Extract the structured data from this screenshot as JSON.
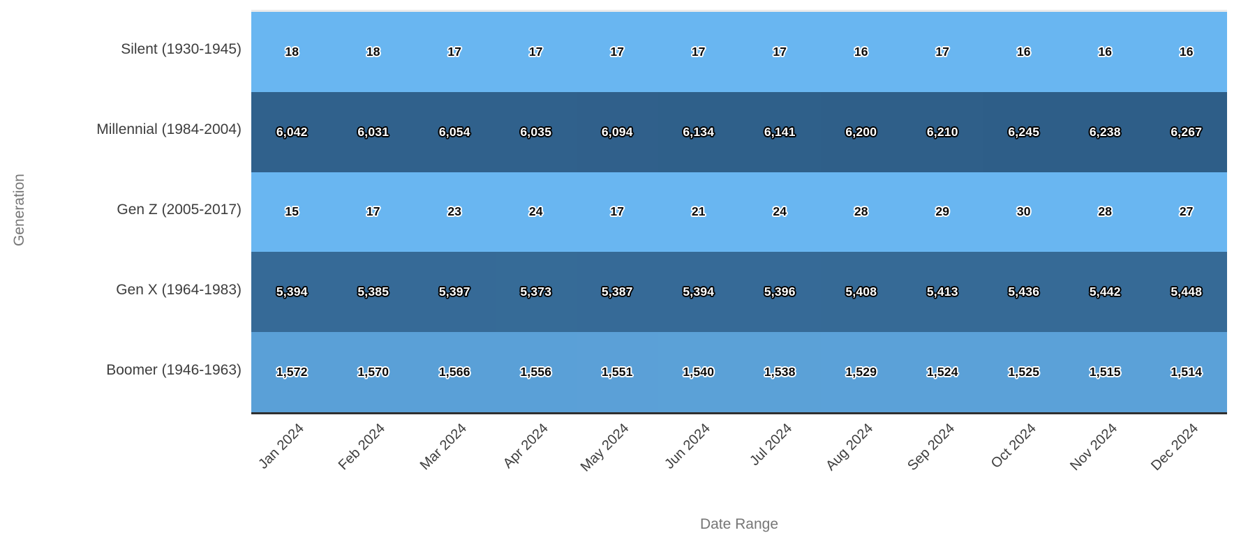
{
  "chart_data": {
    "type": "heatmap",
    "title": "",
    "xlabel": "Date Range",
    "ylabel": "Generation",
    "x": [
      "Jan 2024",
      "Feb 2024",
      "Mar 2024",
      "Apr 2024",
      "May 2024",
      "Jun 2024",
      "Jul 2024",
      "Aug 2024",
      "Sep 2024",
      "Oct 2024",
      "Nov 2024",
      "Dec 2024"
    ],
    "rows": [
      {
        "label": "Silent (1930-1945)",
        "values": [
          18,
          18,
          17,
          17,
          17,
          17,
          17,
          16,
          17,
          16,
          16,
          16
        ]
      },
      {
        "label": "Millennial (1984-2004)",
        "values": [
          6042,
          6031,
          6054,
          6035,
          6094,
          6134,
          6141,
          6200,
          6210,
          6245,
          6238,
          6267
        ]
      },
      {
        "label": "Gen Z (2005-2017)",
        "values": [
          15,
          17,
          23,
          24,
          17,
          21,
          24,
          28,
          29,
          30,
          28,
          27
        ]
      },
      {
        "label": "Gen X (1964-1983)",
        "values": [
          5394,
          5385,
          5397,
          5373,
          5387,
          5394,
          5396,
          5408,
          5413,
          5436,
          5442,
          5448
        ]
      },
      {
        "label": "Boomer (1946-1963)",
        "values": [
          1572,
          1570,
          1566,
          1556,
          1551,
          1540,
          1538,
          1529,
          1524,
          1525,
          1515,
          1514
        ]
      }
    ],
    "colorscale": {
      "min_color": "#69b6f1",
      "max_color": "#2e5e88",
      "domain": [
        15,
        6267
      ],
      "text_switch_threshold": 0.5
    },
    "legend": "none",
    "grid": false,
    "axis_line_color": "#2f2f2f"
  }
}
